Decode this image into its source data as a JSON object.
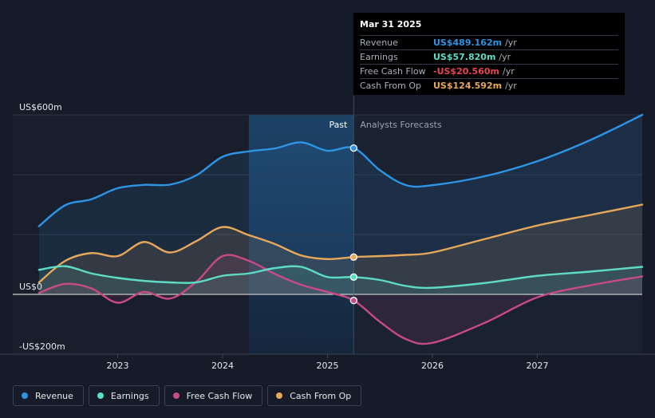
{
  "chart_data": {
    "type": "line",
    "title": "",
    "y_unit": "US$m",
    "ylim": [
      -200,
      600
    ],
    "y_tick_labels": [
      {
        "value": 600,
        "label": "US$600m"
      },
      {
        "value": 0,
        "label": "US$0"
      },
      {
        "value": -200,
        "label": "-US$200m"
      }
    ],
    "xlim": [
      2022.0,
      2028.0
    ],
    "x_ticks": [
      {
        "value": 2023.0,
        "label": "2023"
      },
      {
        "value": 2024.0,
        "label": "2024"
      },
      {
        "value": 2025.0,
        "label": "2025"
      },
      {
        "value": 2026.0,
        "label": "2026"
      },
      {
        "value": 2027.0,
        "label": "2027"
      }
    ],
    "divider_x": 2025.25,
    "highlight_start_x": 2024.25,
    "past_label": "Past",
    "forecast_label": "Analysts Forecasts",
    "series": [
      {
        "name": "Revenue",
        "color": "#2e94e6",
        "x": [
          2022.25,
          2022.5,
          2022.75,
          2023.0,
          2023.25,
          2023.5,
          2023.75,
          2024.0,
          2024.25,
          2024.5,
          2024.75,
          2025.0,
          2025.25,
          2025.5,
          2025.75,
          2026.0,
          2026.5,
          2027.0,
          2027.5,
          2028.0
        ],
        "values": [
          228,
          298,
          318,
          355,
          366,
          367,
          398,
          460,
          478,
          488,
          508,
          480,
          489,
          415,
          365,
          365,
          395,
          445,
          515,
          600
        ]
      },
      {
        "name": "Earnings",
        "color": "#5ddcc5",
        "x": [
          2022.25,
          2022.5,
          2022.75,
          2023.0,
          2023.25,
          2023.5,
          2023.75,
          2024.0,
          2024.25,
          2024.5,
          2024.75,
          2025.0,
          2025.25,
          2025.5,
          2025.75,
          2026.0,
          2026.5,
          2027.0,
          2027.5,
          2028.0
        ],
        "values": [
          82,
          94,
          70,
          55,
          45,
          40,
          40,
          62,
          70,
          88,
          92,
          58,
          57.82,
          48,
          28,
          22,
          38,
          62,
          76,
          92
        ]
      },
      {
        "name": "Free Cash Flow",
        "color": "#c84a86",
        "x": [
          2022.25,
          2022.5,
          2022.75,
          2023.0,
          2023.25,
          2023.5,
          2023.75,
          2024.0,
          2024.25,
          2024.5,
          2024.75,
          2025.0,
          2025.25,
          2025.5,
          2025.75,
          2026.0,
          2026.5,
          2027.0,
          2027.5,
          2028.0
        ],
        "values": [
          5,
          35,
          20,
          -28,
          8,
          -14,
          42,
          128,
          112,
          68,
          32,
          8,
          -20.56,
          -92,
          -150,
          -162,
          -95,
          -10,
          30,
          60
        ]
      },
      {
        "name": "Cash From Op",
        "color": "#e8a85a",
        "x": [
          2022.25,
          2022.5,
          2022.75,
          2023.0,
          2023.25,
          2023.5,
          2023.75,
          2024.0,
          2024.25,
          2024.5,
          2024.75,
          2025.0,
          2025.25,
          2025.5,
          2025.75,
          2026.0,
          2026.5,
          2027.0,
          2027.5,
          2028.0
        ],
        "values": [
          40,
          112,
          138,
          128,
          175,
          140,
          178,
          225,
          198,
          168,
          130,
          118,
          124.592,
          128,
          132,
          140,
          185,
          230,
          265,
          300
        ]
      }
    ]
  },
  "tooltip": {
    "date": "Mar 31 2025",
    "rows": [
      {
        "label": "Revenue",
        "value": "US$489.162m",
        "unit": "/yr",
        "color": "#2e94e6"
      },
      {
        "label": "Earnings",
        "value": "US$57.820m",
        "unit": "/yr",
        "color": "#5ddcc5"
      },
      {
        "label": "Free Cash Flow",
        "value": "-US$20.560m",
        "unit": "/yr",
        "color": "#e8454f"
      },
      {
        "label": "Cash From Op",
        "value": "US$124.592m",
        "unit": "/yr",
        "color": "#e8a85a"
      }
    ]
  },
  "legend": [
    {
      "label": "Revenue",
      "color": "#2e94e6"
    },
    {
      "label": "Earnings",
      "color": "#5ddcc5"
    },
    {
      "label": "Free Cash Flow",
      "color": "#c84a86"
    },
    {
      "label": "Cash From Op",
      "color": "#e8a85a"
    }
  ]
}
